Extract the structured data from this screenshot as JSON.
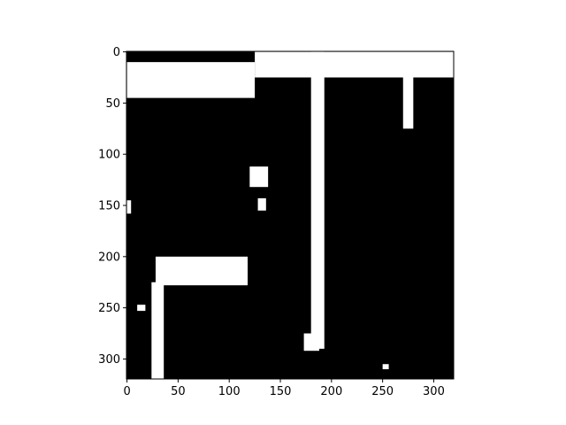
{
  "chart_data": {
    "type": "heatmap",
    "title": "",
    "xlabel": "",
    "ylabel": "",
    "image_size": [
      320,
      320
    ],
    "colormap": "binary (0 = black, 1 = white)",
    "values": "binarized image: mostly black (0) with scattered white (1) regions",
    "xlim": [
      -0.5,
      319.5
    ],
    "ylim": [
      319.5,
      -0.5
    ],
    "x_ticks": [
      0,
      50,
      100,
      150,
      200,
      250,
      300
    ],
    "y_ticks": [
      0,
      50,
      100,
      150,
      200,
      250,
      300
    ],
    "x_tick_labels": [
      "0",
      "50",
      "100",
      "150",
      "200",
      "250",
      "300"
    ],
    "y_tick_labels": [
      "0",
      "50",
      "100",
      "150",
      "200",
      "250",
      "300"
    ],
    "colors": {
      "background": "#000000",
      "foreground": "#ffffff",
      "axes": "#000000"
    },
    "white_regions": [
      {
        "name": "top-left-band",
        "x": [
          0,
          125
        ],
        "y": [
          10,
          45
        ]
      },
      {
        "name": "top-strip",
        "x": [
          125,
          320
        ],
        "y": [
          0,
          25
        ]
      },
      {
        "name": "tall-pole",
        "x": [
          180,
          193
        ],
        "y": [
          0,
          290
        ]
      },
      {
        "name": "right-pole",
        "x": [
          270,
          280
        ],
        "y": [
          10,
          75
        ]
      },
      {
        "name": "blob-1",
        "x": [
          120,
          138
        ],
        "y": [
          112,
          132
        ]
      },
      {
        "name": "blob-2",
        "x": [
          128,
          136
        ],
        "y": [
          143,
          155
        ]
      },
      {
        "name": "sign-frame",
        "x": [
          28,
          118
        ],
        "y": [
          200,
          228
        ]
      },
      {
        "name": "sign-triangle",
        "x": [
          55,
          118
        ],
        "y": [
          205,
          225
        ]
      },
      {
        "name": "left-post",
        "x": [
          24,
          36
        ],
        "y": [
          225,
          320
        ]
      },
      {
        "name": "left-edge-mark",
        "x": [
          0,
          4
        ],
        "y": [
          145,
          158
        ]
      },
      {
        "name": "small-dot-1",
        "x": [
          10,
          18
        ],
        "y": [
          247,
          253
        ]
      },
      {
        "name": "small-dot-2",
        "x": [
          250,
          256
        ],
        "y": [
          305,
          310
        ]
      },
      {
        "name": "pole-base",
        "x": [
          173,
          188
        ],
        "y": [
          275,
          292
        ]
      }
    ]
  }
}
